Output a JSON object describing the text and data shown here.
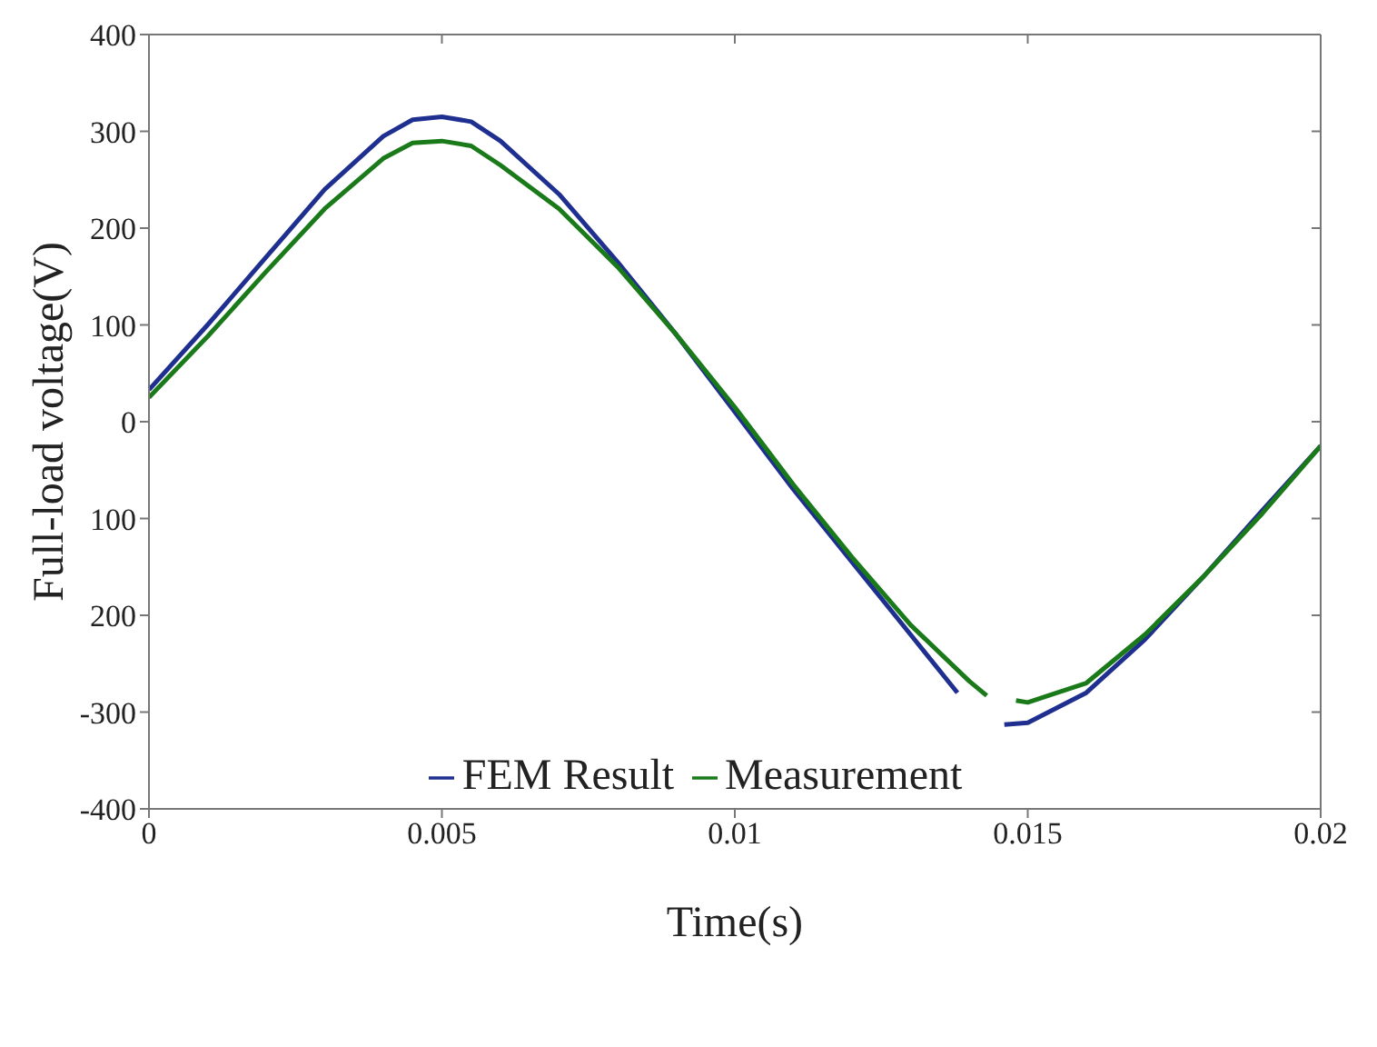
{
  "chart_data": {
    "type": "line",
    "xlabel": "Time(s)",
    "ylabel": "Full-load voltage(V)",
    "xlim": [
      0,
      0.02
    ],
    "xticks": [
      0,
      0.005,
      0.01,
      0.015,
      0.02
    ],
    "ylim": [
      -400,
      400
    ],
    "yticks": [
      {
        "value": -400,
        "label": "-400"
      },
      {
        "value": -300,
        "label": "-300"
      },
      {
        "value": -200,
        "label": "200"
      },
      {
        "value": -100,
        "label": "100"
      },
      0,
      100,
      200,
      300,
      400
    ],
    "legend": "bottom",
    "series": [
      {
        "name": "FEM Result",
        "color": "#1f2f8f",
        "x": [
          0,
          0.001,
          0.002,
          0.003,
          0.004,
          0.0045,
          0.005,
          0.0055,
          0.006,
          0.007,
          0.008,
          0.009,
          0.01,
          0.011,
          0.012,
          0.013,
          0.0138,
          0.0142,
          0.0146,
          0.015,
          0.016,
          0.017,
          0.018,
          0.019,
          0.02
        ],
        "values": [
          33,
          100,
          170,
          240,
          295,
          312,
          315,
          310,
          290,
          235,
          165,
          90,
          10,
          -70,
          -145,
          -220,
          -280,
          null,
          -313,
          -311,
          -280,
          -225,
          -160,
          -92,
          -25
        ]
      },
      {
        "name": "Measurement",
        "color": "#1a7a1a",
        "x": [
          0,
          0.001,
          0.002,
          0.003,
          0.004,
          0.0045,
          0.005,
          0.0055,
          0.006,
          0.007,
          0.008,
          0.009,
          0.01,
          0.011,
          0.012,
          0.013,
          0.014,
          0.0143,
          0.0146,
          0.0148,
          0.015,
          0.016,
          0.017,
          0.018,
          0.019,
          0.02
        ],
        "values": [
          25,
          88,
          155,
          220,
          272,
          288,
          290,
          285,
          265,
          220,
          160,
          90,
          15,
          -65,
          -140,
          -210,
          -268,
          -283,
          null,
          -288,
          -290,
          -270,
          -220,
          -160,
          -95,
          -25
        ]
      }
    ]
  }
}
